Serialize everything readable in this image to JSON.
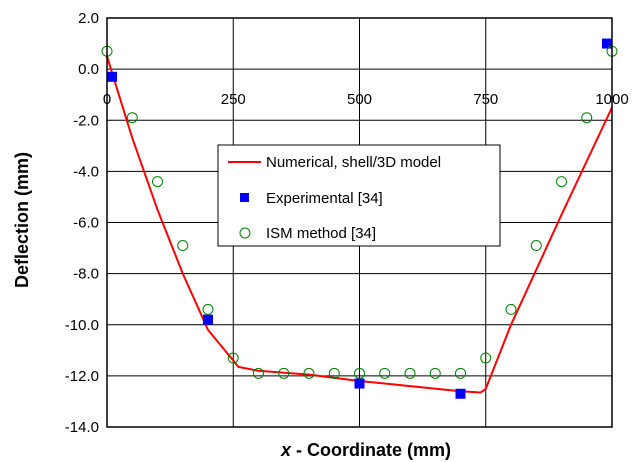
{
  "chart_data": {
    "type": "line",
    "xlabel_var": "x",
    "xlabel_rest": " - Coordinate (mm)",
    "ylabel": "Deflection (mm)",
    "xlim": [
      0,
      1000
    ],
    "ylim": [
      -14,
      2
    ],
    "x_ticks": [
      0,
      250,
      500,
      750,
      1000
    ],
    "x_tick_labels": [
      "0",
      "250",
      "500",
      "750",
      "1000"
    ],
    "y_ticks": [
      2,
      0,
      -2,
      -4,
      -6,
      -8,
      -10,
      -12,
      -14
    ],
    "y_tick_labels": [
      "2.0",
      "0.0",
      "-2.0",
      "-4.0",
      "-6.0",
      "-8.0",
      "-10.0",
      "-12.0",
      "-14.0"
    ],
    "grid": true,
    "legend_position": "center",
    "series": [
      {
        "name": "Numerical, shell/3D model",
        "style": "line",
        "color": "#ff0000",
        "x": [
          0,
          50,
          100,
          150,
          200,
          250,
          260,
          300,
          400,
          500,
          600,
          700,
          740,
          750,
          800,
          900,
          1000
        ],
        "y": [
          0.5,
          -2.7,
          -5.5,
          -8.0,
          -10.2,
          -11.4,
          -11.65,
          -11.8,
          -11.95,
          -12.2,
          -12.4,
          -12.6,
          -12.65,
          -12.5,
          -10.0,
          -5.7,
          -1.5
        ]
      },
      {
        "name": "Experimental [34]",
        "style": "square",
        "color": "#0000ff",
        "x": [
          10,
          200,
          500,
          700,
          990
        ],
        "y": [
          -0.3,
          -9.8,
          -12.3,
          -12.7,
          1.0
        ]
      },
      {
        "name": "ISM method [34]",
        "style": "circle-open",
        "color": "#008000",
        "x": [
          0,
          50,
          100,
          150,
          200,
          250,
          300,
          350,
          400,
          450,
          500,
          550,
          600,
          650,
          700,
          750,
          800,
          850,
          900,
          950,
          1000
        ],
        "y": [
          0.7,
          -1.9,
          -4.4,
          -6.9,
          -9.4,
          -11.3,
          -11.9,
          -11.9,
          -11.9,
          -11.9,
          -11.9,
          -11.9,
          -11.9,
          -11.9,
          -11.9,
          -11.3,
          -9.4,
          -6.9,
          -4.4,
          -1.9,
          0.7
        ]
      }
    ]
  }
}
